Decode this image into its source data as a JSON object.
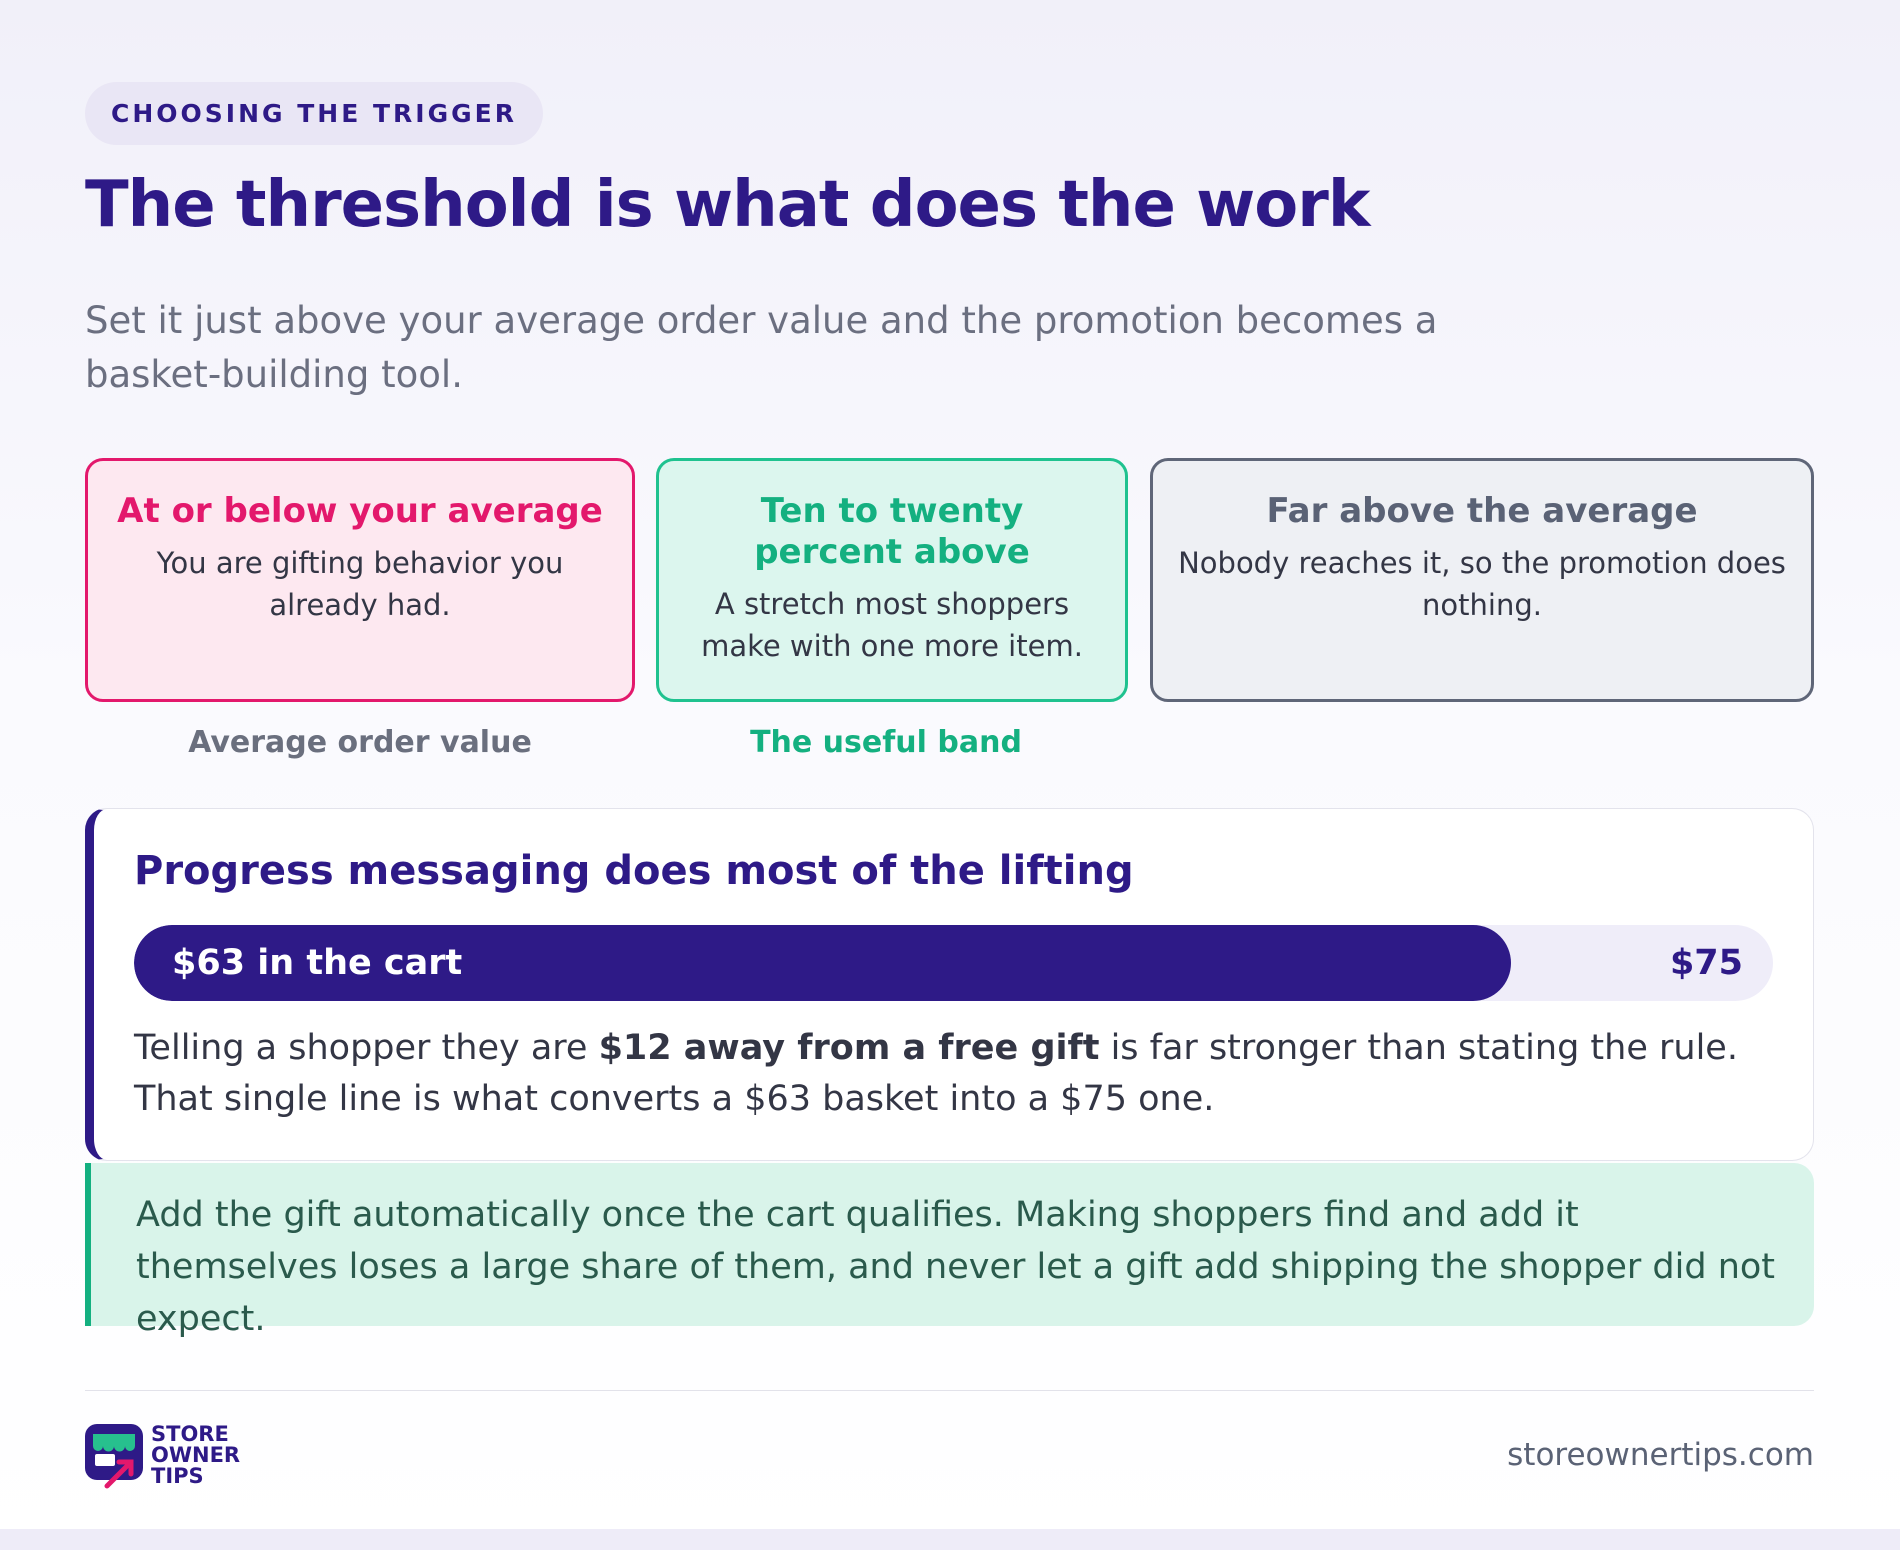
{
  "header": {
    "eyebrow": "CHOOSING THE TRIGGER",
    "title": "The threshold is what does the work",
    "subtitle": "Set it just above your average order value and the promotion becomes a basket-building tool."
  },
  "bands": [
    {
      "title": "At or below your average",
      "text": "You are gifting behavior you already had."
    },
    {
      "title": "Ten to twenty percent above",
      "text": "A stretch most shoppers make with one more item."
    },
    {
      "title": "Far above the average",
      "text": "Nobody reaches it, so the promotion does nothing."
    }
  ],
  "band_labels": [
    "Average order value",
    "The useful band"
  ],
  "progress": {
    "title": "Progress messaging does most of the lifting",
    "value": 63,
    "max": 75,
    "value_label": "$63 in the cart",
    "max_label": "$75",
    "body": [
      "Telling a shopper they are ",
      "$12 away from a free gift",
      " is far stronger than stating the rule. That single line is what converts a $63 basket into a $75 one."
    ]
  },
  "note": "Add the gift automatically once the cart qualifies. Making shoppers find and add it themselves loses a large share of them, and never let a gift add shipping the shopper did not expect.",
  "footer": {
    "logo_lines": [
      "STORE",
      "OWNER",
      "TIPS"
    ],
    "url": "storeownertips.com"
  }
}
